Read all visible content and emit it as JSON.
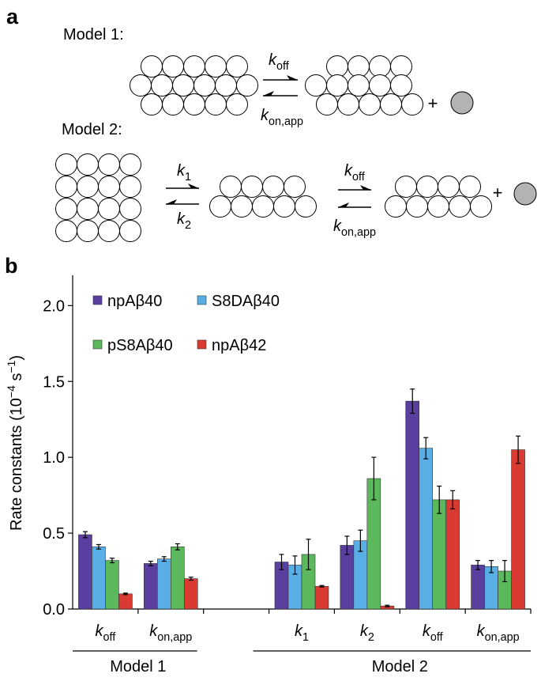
{
  "panel_a": {
    "label": "a",
    "model1": {
      "title": "Model 1:",
      "forward": {
        "symbol": "k",
        "sub": "off"
      },
      "reverse": {
        "symbol": "k",
        "sub": "on,app"
      },
      "plus": "+"
    },
    "model2": {
      "title": "Model 2:",
      "step1_forward": {
        "symbol": "k",
        "sub": "1"
      },
      "step1_reverse": {
        "symbol": "k",
        "sub": "2"
      },
      "step2_forward": {
        "symbol": "k",
        "sub": "off"
      },
      "step2_reverse": {
        "symbol": "k",
        "sub": "on,app"
      },
      "plus": "+"
    }
  },
  "chart_data": {
    "type": "bar",
    "panel_label": "b",
    "ylabel_parts": [
      "Rate constants (10",
      "−4",
      " s",
      "−1",
      ")"
    ],
    "categories": [
      {
        "symbol": "k",
        "sub": "off"
      },
      {
        "symbol": "k",
        "sub": "on,app"
      },
      null,
      {
        "symbol": "k",
        "sub": "1"
      },
      {
        "symbol": "k",
        "sub": "2"
      },
      {
        "symbol": "k",
        "sub": "off"
      },
      {
        "symbol": "k",
        "sub": "on,app"
      }
    ],
    "groups": [
      "Model 1",
      "Model 2"
    ],
    "series": [
      {
        "name": "npAβ40",
        "color": "#5a3f9e",
        "values": [
          0.49,
          0.3,
          null,
          0.31,
          0.42,
          1.37,
          0.29
        ],
        "errors": [
          0.02,
          0.015,
          null,
          0.05,
          0.06,
          0.08,
          0.03
        ]
      },
      {
        "name": "S8DAβ40",
        "color": "#5aaee6",
        "values": [
          0.41,
          0.33,
          null,
          0.29,
          0.45,
          1.06,
          0.28
        ],
        "errors": [
          0.015,
          0.015,
          null,
          0.06,
          0.07,
          0.07,
          0.04
        ]
      },
      {
        "name": "pS8Aβ40",
        "color": "#5cb85c",
        "values": [
          0.32,
          0.41,
          null,
          0.36,
          0.86,
          0.72,
          0.25
        ],
        "errors": [
          0.015,
          0.02,
          null,
          0.1,
          0.14,
          0.09,
          0.07
        ]
      },
      {
        "name": "npAβ42",
        "color": "#d93a32",
        "values": [
          0.1,
          0.2,
          null,
          0.15,
          0.02,
          0.72,
          1.05
        ],
        "errors": [
          0.005,
          0.01,
          null,
          0.005,
          0.005,
          0.06,
          0.09
        ]
      }
    ],
    "ylim": [
      0,
      2.2
    ],
    "yticks": [
      {
        "value": 0,
        "label": "0.0"
      },
      0.5,
      {
        "value": 1,
        "label": "1.0"
      },
      1.5,
      {
        "value": 2,
        "label": "2.0"
      }
    ],
    "grid": false
  }
}
